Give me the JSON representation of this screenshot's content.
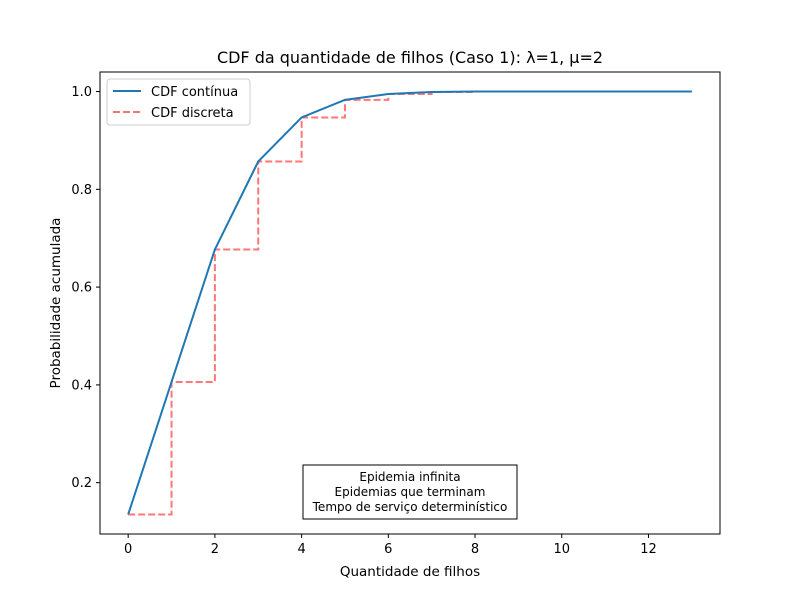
{
  "chart_data": {
    "type": "line",
    "title": "CDF da quantidade de filhos (Caso 1): λ=1, μ=2",
    "xlabel": "Quantidade de filhos",
    "ylabel": "Probabilidade acumulada",
    "xlim": [
      -0.65,
      13.65
    ],
    "ylim": [
      0.095,
      1.04
    ],
    "xticks": [
      0,
      2,
      4,
      6,
      8,
      10,
      12
    ],
    "yticks": [
      0.2,
      0.4,
      0.6,
      0.8,
      1.0
    ],
    "xtick_labels": [
      "0",
      "2",
      "4",
      "6",
      "8",
      "10",
      "12"
    ],
    "ytick_labels": [
      "0.2",
      "0.4",
      "0.6",
      "0.8",
      "1.0"
    ],
    "grid": false,
    "legend_position": "top-left",
    "series": [
      {
        "name": "CDF contínua",
        "style": "solid",
        "color": "#1f77b4",
        "x": [
          0,
          1,
          2,
          3,
          4,
          5,
          6,
          7,
          8,
          9,
          10,
          11,
          12,
          13
        ],
        "y": [
          0.135,
          0.406,
          0.677,
          0.857,
          0.947,
          0.983,
          0.995,
          0.999,
          1.0,
          1.0,
          1.0,
          1.0,
          1.0,
          1.0
        ]
      },
      {
        "name": "CDF discreta",
        "style": "dashed-step",
        "color": "#ff7070",
        "x": [
          0,
          1,
          2,
          3,
          4,
          5,
          6,
          7,
          8,
          9,
          10,
          11,
          12,
          13
        ],
        "y": [
          0.135,
          0.406,
          0.677,
          0.857,
          0.947,
          0.983,
          0.995,
          0.999,
          1.0,
          1.0,
          1.0,
          1.0,
          1.0,
          1.0
        ]
      }
    ],
    "annotation_lines": [
      "Epidemia infinita",
      "Epidemias que terminam",
      "Tempo de serviço determinístico"
    ]
  }
}
